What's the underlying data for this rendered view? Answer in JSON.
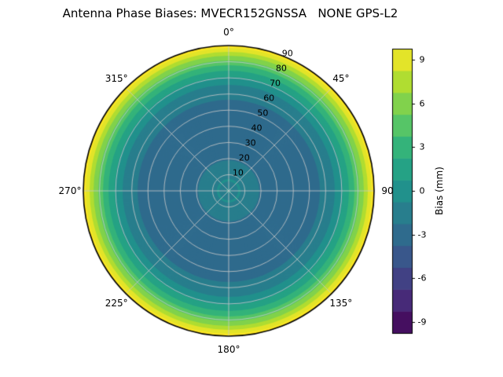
{
  "chart_data": {
    "type": "heatmap",
    "subtype": "polar_contour",
    "title": "Antenna Phase Biases: MVECR152GNSSA   NONE GPS-L2",
    "theta_tick_labels": [
      {
        "angle_deg": 0,
        "label": "0°"
      },
      {
        "angle_deg": 45,
        "label": "45°"
      },
      {
        "angle_deg": 90,
        "label": "90"
      },
      {
        "angle_deg": 135,
        "label": "135°"
      },
      {
        "angle_deg": 180,
        "label": "180°"
      },
      {
        "angle_deg": 225,
        "label": "225°"
      },
      {
        "angle_deg": 270,
        "label": "270°"
      },
      {
        "angle_deg": 315,
        "label": "315°"
      }
    ],
    "r_axis": {
      "min": 0,
      "max": 90,
      "tick_values": [
        10,
        20,
        30,
        40,
        50,
        60,
        70,
        80,
        90
      ],
      "tick_label_angle_deg": 22.5
    },
    "radial_profile": {
      "comment_r_units": "zenith angle, degrees from center",
      "r": [
        0,
        4,
        7,
        10,
        13,
        16,
        20,
        25,
        35,
        45,
        52,
        58,
        63,
        67,
        70,
        73,
        76,
        79,
        82,
        85,
        87,
        89,
        90
      ],
      "bias_mm": [
        -0.5,
        -1.1,
        -0.6,
        -1.3,
        -0.8,
        -1.6,
        -2.4,
        -2.9,
        -3.4,
        -3.1,
        -2.8,
        -2.1,
        -1.4,
        -0.5,
        0.4,
        1.5,
        2.8,
        4.2,
        5.8,
        7.4,
        8.6,
        9.8,
        10.3
      ]
    },
    "colorbar": {
      "label": "Bias (mm)",
      "ticks": [
        -9,
        -6,
        -3,
        0,
        3,
        6,
        9
      ],
      "vmin": -9.75,
      "vmax": 9.75,
      "band_width": 1.5
    },
    "colormap": {
      "name": "viridis",
      "stops": [
        "#440154",
        "#472d7b",
        "#3b528b",
        "#2c728e",
        "#21918c",
        "#27ad81",
        "#5ec962",
        "#aadc32",
        "#fde725"
      ]
    },
    "grid": {
      "color": "#c9c9c9",
      "theta_step_deg": 45,
      "r_step": 10,
      "outline_color": "#000000"
    }
  }
}
